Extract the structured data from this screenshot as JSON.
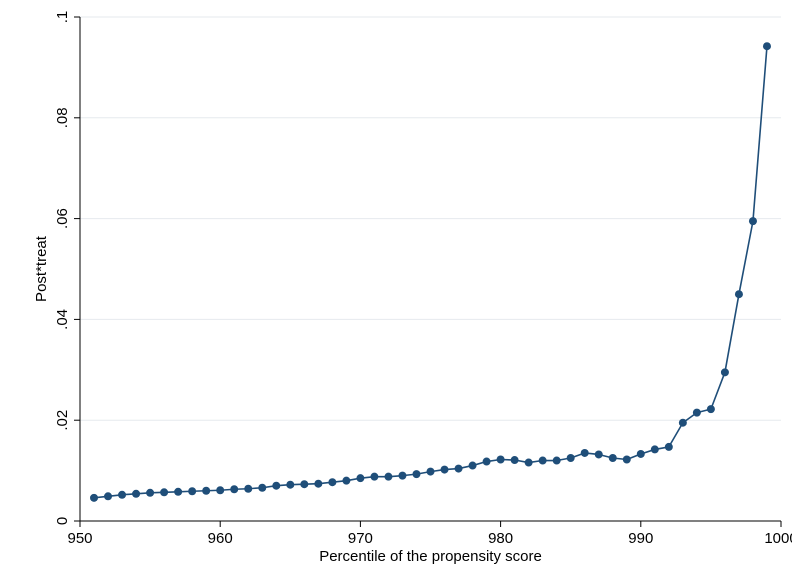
{
  "chart_data": {
    "type": "line",
    "title": "",
    "xlabel": "Percentile of the propensity score",
    "ylabel": "Post*treat",
    "xlim": [
      950,
      1000
    ],
    "ylim": [
      0,
      0.1
    ],
    "x_ticks": [
      950,
      960,
      970,
      980,
      990,
      1000
    ],
    "x_tick_labels": [
      "950",
      "960",
      "970",
      "980",
      "990",
      "1000"
    ],
    "y_ticks": [
      0,
      0.02,
      0.04,
      0.06,
      0.08,
      0.1
    ],
    "y_tick_labels": [
      "0",
      ".02",
      ".04",
      ".06",
      ".08",
      ".1"
    ],
    "grid": true,
    "legend": "none",
    "colors": {
      "series": "#1f4e79",
      "grid": "#e6eaee",
      "axis": "#000000",
      "background": "#ffffff"
    },
    "series": [
      {
        "name": "",
        "x": [
          951,
          952,
          953,
          954,
          955,
          956,
          957,
          958,
          959,
          960,
          961,
          962,
          963,
          964,
          965,
          966,
          967,
          968,
          969,
          970,
          971,
          972,
          973,
          974,
          975,
          976,
          977,
          978,
          979,
          980,
          981,
          982,
          983,
          984,
          985,
          986,
          987,
          988,
          989,
          990,
          991,
          992,
          993,
          994,
          995,
          996,
          997,
          998,
          999
        ],
        "y": [
          0.0046,
          0.0049,
          0.0052,
          0.0054,
          0.0056,
          0.0057,
          0.0058,
          0.0059,
          0.006,
          0.0061,
          0.0063,
          0.0064,
          0.0066,
          0.007,
          0.0072,
          0.0073,
          0.0074,
          0.0077,
          0.008,
          0.0085,
          0.0088,
          0.0088,
          0.009,
          0.0093,
          0.0098,
          0.0102,
          0.0104,
          0.011,
          0.0118,
          0.0122,
          0.0121,
          0.0116,
          0.012,
          0.012,
          0.0125,
          0.0135,
          0.0132,
          0.0125,
          0.0122,
          0.0133,
          0.0142,
          0.0147,
          0.0195,
          0.0215,
          0.0222,
          0.0295,
          0.045,
          0.0595,
          0.0942
        ]
      }
    ]
  }
}
